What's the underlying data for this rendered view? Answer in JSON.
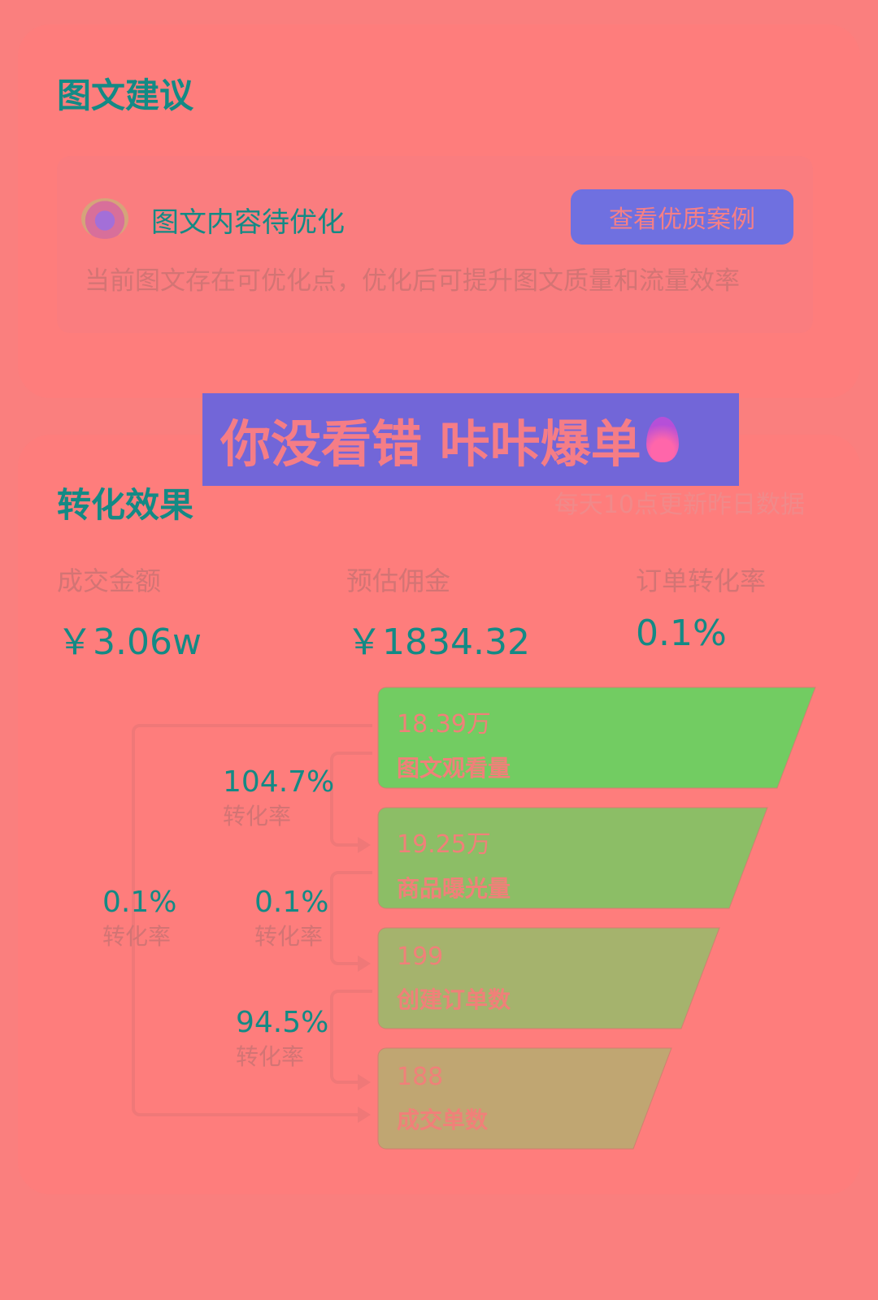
{
  "suggestion": {
    "title": "图文建议",
    "status_title": "图文内容待优化",
    "button_label": "查看优质案例",
    "description": "当前图文存在可优化点，优化后可提升图文质量和流量效率"
  },
  "banner": {
    "text": "你没看错 咔咔爆单",
    "icon": "fire-icon"
  },
  "conversion": {
    "title": "转化效果",
    "update_note": "每天10点更新昨日数据",
    "metrics": [
      {
        "label": "成交金额",
        "value": "￥3.06w"
      },
      {
        "label": "预估佣金",
        "value": "￥1834.32"
      },
      {
        "label": "订单转化率",
        "value": "0.1%"
      }
    ],
    "funnel": [
      {
        "value": "18.39万",
        "label": "图文观看量",
        "color": "#72cc62"
      },
      {
        "value": "19.25万",
        "label": "商品曝光量",
        "color": "#8cbe66"
      },
      {
        "value": "199",
        "label": "创建订单数",
        "color": "#a5b36d"
      },
      {
        "value": "188",
        "label": "成交单数",
        "color": "#c0a672"
      }
    ],
    "rates": [
      {
        "value": "104.7%",
        "label": "转化率"
      },
      {
        "value": "0.1%",
        "label": "转化率"
      },
      {
        "value": "94.5%",
        "label": "转化率"
      },
      {
        "value": "0.1%",
        "label": "转化率"
      }
    ]
  }
}
